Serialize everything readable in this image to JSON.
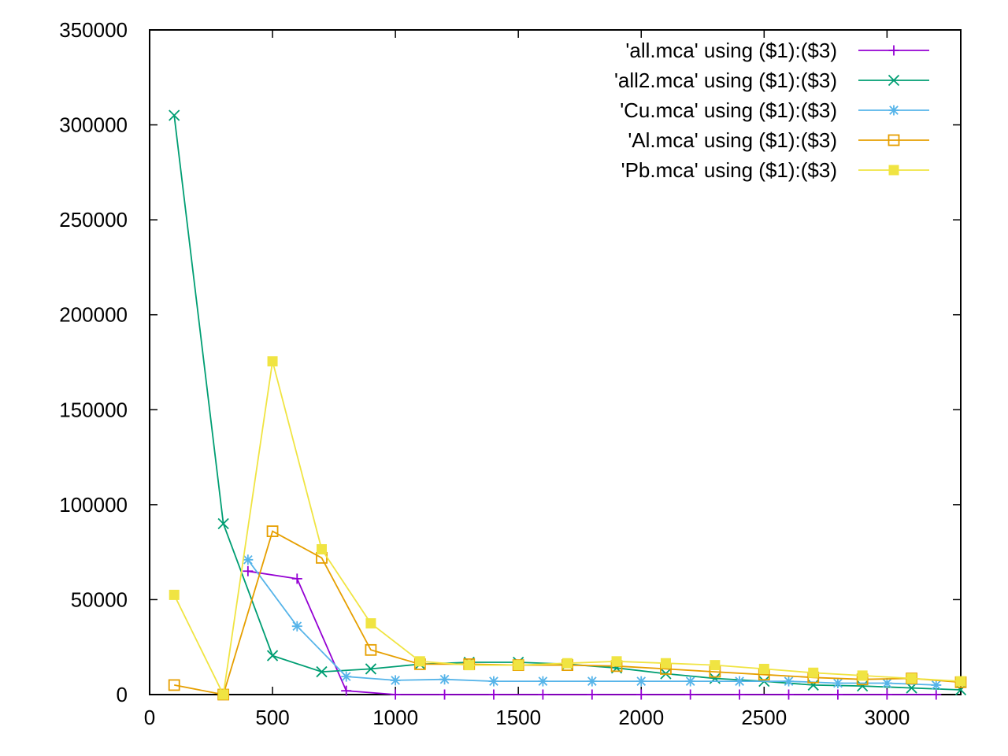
{
  "chart_data": {
    "type": "line",
    "title": "",
    "xlabel": "",
    "ylabel": "",
    "xlim": [
      0,
      3300
    ],
    "ylim": [
      0,
      350000
    ],
    "x_ticks": [
      "0",
      "500",
      "1000",
      "1500",
      "2000",
      "2500",
      "3000"
    ],
    "y_ticks": [
      "0",
      "50000",
      "100000",
      "150000",
      "200000",
      "250000",
      "300000",
      "350000"
    ],
    "grid": false,
    "legend_position": "top-right",
    "series": [
      {
        "name": "'all.mca' using ($1):($3)",
        "color": "#9400d3",
        "marker": "plus",
        "points": [
          [
            400,
            65000
          ],
          [
            600,
            61000
          ],
          [
            800,
            2000
          ],
          [
            1000,
            0
          ],
          [
            1200,
            0
          ],
          [
            1400,
            0
          ],
          [
            1600,
            0
          ],
          [
            1800,
            0
          ],
          [
            2000,
            0
          ],
          [
            2200,
            0
          ],
          [
            2400,
            0
          ],
          [
            2600,
            0
          ],
          [
            2800,
            0
          ],
          [
            3000,
            0
          ],
          [
            3200,
            0
          ]
        ]
      },
      {
        "name": "'all2.mca' using ($1):($3)",
        "color": "#009e73",
        "marker": "cross",
        "points": [
          [
            100,
            305000
          ],
          [
            300,
            90000
          ],
          [
            500,
            20500
          ],
          [
            700,
            12000
          ],
          [
            900,
            13500
          ],
          [
            1100,
            16000
          ],
          [
            1300,
            17000
          ],
          [
            1500,
            17000
          ],
          [
            1700,
            16000
          ],
          [
            1900,
            14000
          ],
          [
            2100,
            11000
          ],
          [
            2300,
            8500
          ],
          [
            2500,
            7000
          ],
          [
            2700,
            5000
          ],
          [
            2900,
            4500
          ],
          [
            3100,
            3500
          ],
          [
            3300,
            2500
          ]
        ]
      },
      {
        "name": "'Cu.mca' using ($1):($3)",
        "color": "#56b4e9",
        "marker": "star",
        "points": [
          [
            400,
            71000
          ],
          [
            600,
            36000
          ],
          [
            800,
            9500
          ],
          [
            1000,
            7500
          ],
          [
            1200,
            8000
          ],
          [
            1400,
            7000
          ],
          [
            1600,
            7000
          ],
          [
            1800,
            7000
          ],
          [
            2000,
            7000
          ],
          [
            2200,
            7000
          ],
          [
            2400,
            7000
          ],
          [
            2600,
            7000
          ],
          [
            2800,
            6000
          ],
          [
            3000,
            6000
          ],
          [
            3200,
            5000
          ]
        ]
      },
      {
        "name": "'Al.mca' using ($1):($3)",
        "color": "#e69f00",
        "marker": "open-square",
        "points": [
          [
            100,
            5000
          ],
          [
            300,
            0
          ],
          [
            500,
            86000
          ],
          [
            700,
            72000
          ],
          [
            900,
            23500
          ],
          [
            1100,
            16000
          ],
          [
            1300,
            16000
          ],
          [
            1500,
            15500
          ],
          [
            1700,
            15500
          ],
          [
            1900,
            15000
          ],
          [
            2100,
            13500
          ],
          [
            2300,
            12000
          ],
          [
            2500,
            10500
          ],
          [
            2700,
            9000
          ],
          [
            2900,
            8000
          ],
          [
            3100,
            8500
          ],
          [
            3300,
            6500
          ]
        ]
      },
      {
        "name": "'Pb.mca' using ($1):($3)",
        "color": "#f0e442",
        "marker": "filled-square",
        "points": [
          [
            100,
            52500
          ],
          [
            300,
            0
          ],
          [
            500,
            175500
          ],
          [
            700,
            76500
          ],
          [
            900,
            37500
          ],
          [
            1100,
            17500
          ],
          [
            1300,
            15500
          ],
          [
            1500,
            15500
          ],
          [
            1700,
            16500
          ],
          [
            1900,
            17500
          ],
          [
            2100,
            16500
          ],
          [
            2300,
            15500
          ],
          [
            2500,
            13500
          ],
          [
            2700,
            11500
          ],
          [
            2900,
            10000
          ],
          [
            3100,
            8500
          ],
          [
            3300,
            7000
          ]
        ]
      }
    ]
  }
}
